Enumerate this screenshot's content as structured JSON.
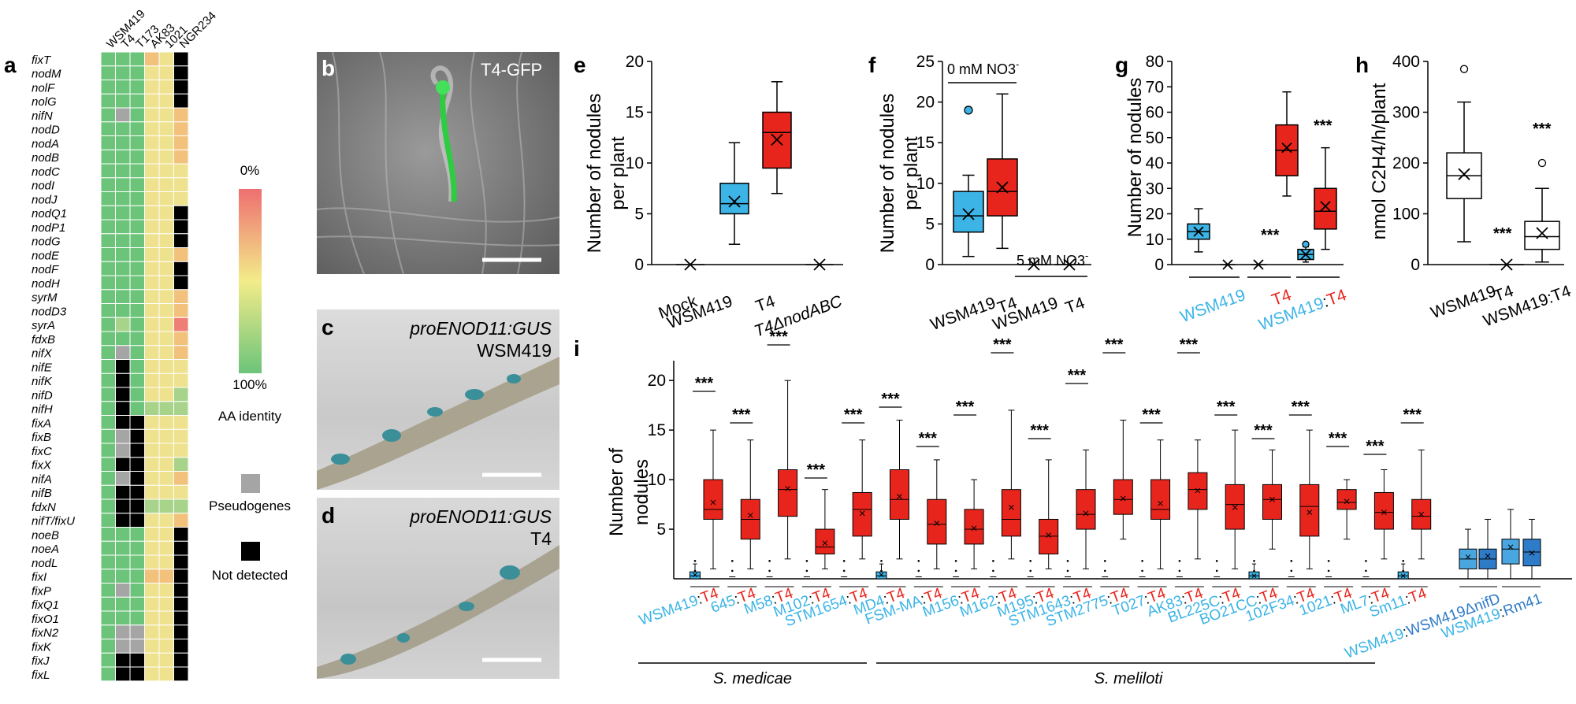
{
  "panels": {
    "a": {
      "label": "a",
      "strains": [
        "WSM419",
        "T4",
        "T173",
        "AK83",
        "1021",
        "NGR234"
      ],
      "genes": [
        "fixT",
        "nodM",
        "nolF",
        "nolG",
        "nifN",
        "nodD",
        "nodA",
        "nodB",
        "nodC",
        "nodI",
        "nodJ",
        "nodQ1",
        "nodP1",
        "nodG",
        "nodE",
        "nodF",
        "nodH",
        "syrM",
        "nodD3",
        "syrA",
        "fdxB",
        "nifX",
        "nifE",
        "nifK",
        "nifD",
        "nifH",
        "fixA",
        "fixB",
        "fixC",
        "fixX",
        "nifA",
        "nifB",
        "fdxN",
        "nifT/fixU",
        "noeB",
        "noeA",
        "nodL",
        "fixI",
        "fixP",
        "fixQ1",
        "fixO1",
        "fixN2",
        "fixK",
        "fixJ",
        "fixL"
      ],
      "legend": {
        "top": "0%",
        "bottom": "100%",
        "aa": "AA identity",
        "pseudo": "Pseudogenes",
        "notdetected": "Not detected"
      },
      "colors": {
        "green": "#6cc47a",
        "lightgreen": "#a7d48a",
        "yellow": "#eee28e",
        "orange": "#f2c27c",
        "red": "#ee7f76",
        "grey": "#a5a5a5",
        "black": "#000000"
      }
    },
    "b": {
      "label": "b",
      "caption": "T4-GFP"
    },
    "c": {
      "label": "c",
      "caption1": "proENOD11:GUS",
      "caption2": "WSM419"
    },
    "d": {
      "label": "d",
      "caption1": "proENOD11:GUS",
      "caption2": "T4"
    },
    "e": {
      "label": "e",
      "ylabel1": "Number of nodules",
      "ylabel2": "per plant",
      "xlabels": [
        "Mock",
        "WSM419",
        "T4",
        "T4ΔnodABC"
      ]
    },
    "f": {
      "label": "f",
      "ylabel1": "Number of nodules",
      "ylabel2": "per plant",
      "xlabels": [
        "WSM419",
        "T4",
        "WSM419",
        "T4"
      ],
      "note0": "0 mM NO3",
      "note5": "5 mM NO3",
      "minus": "-"
    },
    "g": {
      "label": "g",
      "ylabel": "Number of nodules",
      "xlabels": [
        "WSM419",
        "T4",
        "WSM419",
        ":",
        "T4"
      ],
      "stars": "***"
    },
    "h": {
      "label": "h",
      "ylabel": "nmol C2H4/h/plant",
      "xlabels": [
        "WSM419",
        "T4",
        "WSM419:T4"
      ],
      "stars": "***"
    },
    "i": {
      "label": "i",
      "ylabel1": "Number of",
      "ylabel2": "nodules",
      "stars": "***",
      "species1": "S. medicae",
      "species2": "S. meliloti",
      "pairs": [
        {
          "a": "WSM419",
          "sep": ":",
          "b": "T4"
        },
        {
          "a": "645",
          "sep": ":",
          "b": "T4"
        },
        {
          "a": "M58",
          "sep": ":",
          "b": "T4"
        },
        {
          "a": "M102",
          "sep": ":",
          "b": "T4"
        },
        {
          "a": "STM1654",
          "sep": ":",
          "b": "T4"
        },
        {
          "a": "MD4",
          "sep": ":",
          "b": "T4"
        },
        {
          "a": "FSM-MA",
          "sep": ":",
          "b": "T4"
        },
        {
          "a": "M156",
          "sep": ":",
          "b": "T4"
        },
        {
          "a": "M162",
          "sep": ":",
          "b": "T4"
        },
        {
          "a": "M195",
          "sep": ":",
          "b": "T4"
        },
        {
          "a": "STM1643",
          "sep": ":",
          "b": "T4"
        },
        {
          "a": "STM2775",
          "sep": ":",
          "b": "T4"
        },
        {
          "a": "T027",
          "sep": ":",
          "b": "T4"
        },
        {
          "a": "AK83",
          "sep": ":",
          "b": "T4"
        },
        {
          "a": "BL225C",
          "sep": ":",
          "b": "T4"
        },
        {
          "a": "BO21CC",
          "sep": ":",
          "b": "T4"
        },
        {
          "a": "102F34",
          "sep": ":",
          "b": "T4"
        },
        {
          "a": "1021",
          "sep": ":",
          "b": "T4"
        },
        {
          "a": "ML7",
          "sep": ":",
          "b": "T4"
        },
        {
          "a": "Sm11",
          "sep": ":",
          "b": "T4"
        }
      ],
      "ctrl1": {
        "a": "WSM419",
        "sep": ":",
        "b": "WSM419ΔnifD"
      },
      "ctrl2": {
        "a": "WSM419",
        "sep": ":",
        "b": "Rm41"
      }
    }
  },
  "chart_data": [
    {
      "type": "box",
      "id": "e",
      "ylim": [
        0,
        20
      ],
      "yticks": [
        0,
        5,
        10,
        15,
        20
      ],
      "categories": [
        "Mock",
        "WSM419",
        "T4",
        "T4ΔnodABC"
      ],
      "boxes": [
        {
          "min": 0,
          "q1": 0,
          "med": 0,
          "q3": 0,
          "max": 0,
          "mean": 0
        },
        {
          "min": 2,
          "q1": 5,
          "med": 6,
          "q3": 8,
          "max": 12,
          "mean": 6.2
        },
        {
          "min": 7,
          "q1": 9.5,
          "med": 13,
          "q3": 15,
          "max": 18,
          "mean": 12.3
        },
        {
          "min": 0,
          "q1": 0,
          "med": 0,
          "q3": 0,
          "max": 0,
          "mean": 0
        }
      ]
    },
    {
      "type": "box",
      "id": "f",
      "ylim": [
        0,
        25
      ],
      "yticks": [
        0,
        5,
        10,
        15,
        20,
        25
      ],
      "categories": [
        "WSM419",
        "T4",
        "WSM419",
        "T4"
      ],
      "boxes": [
        {
          "min": 1,
          "q1": 4,
          "med": 6,
          "q3": 9,
          "max": 11,
          "mean": 6.2,
          "outliers": [
            19
          ]
        },
        {
          "min": 2,
          "q1": 6,
          "med": 9,
          "q3": 13,
          "max": 21,
          "mean": 9.5
        },
        {
          "min": 0,
          "q1": 0,
          "med": 0,
          "q3": 0,
          "max": 0,
          "mean": 0
        },
        {
          "min": 0,
          "q1": 0,
          "med": 0,
          "q3": 0,
          "max": 0,
          "mean": 0
        }
      ]
    },
    {
      "type": "box",
      "id": "g",
      "ylim": [
        0,
        80
      ],
      "yticks": [
        0,
        10,
        20,
        30,
        40,
        50,
        60,
        70,
        80
      ],
      "boxes": [
        {
          "min": 5,
          "q1": 10,
          "med": 13,
          "q3": 16,
          "max": 22,
          "mean": 13
        },
        {
          "min": 0,
          "q1": 0,
          "med": 0,
          "q3": 0,
          "max": 0,
          "mean": 0
        },
        {
          "min": 0,
          "q1": 0,
          "med": 0,
          "q3": 0,
          "max": 0,
          "mean": 0
        },
        {
          "min": 27,
          "q1": 35,
          "med": 45,
          "q3": 55,
          "max": 68,
          "mean": 46
        },
        {
          "min": 1,
          "q1": 2,
          "med": 4,
          "q3": 6,
          "max": 7,
          "mean": 4,
          "outliers": [
            8
          ]
        },
        {
          "min": 6,
          "q1": 14,
          "med": 21,
          "q3": 30,
          "max": 46,
          "mean": 23
        }
      ]
    },
    {
      "type": "box",
      "id": "h",
      "ylim": [
        0,
        400
      ],
      "yticks": [
        0,
        100,
        200,
        300,
        400
      ],
      "categories": [
        "WSM419",
        "T4",
        "WSM419:T4"
      ],
      "boxes": [
        {
          "min": 45,
          "q1": 130,
          "med": 175,
          "q3": 220,
          "max": 320,
          "mean": 178,
          "outliers": [
            385
          ]
        },
        {
          "min": 0,
          "q1": 0,
          "med": 0,
          "q3": 0,
          "max": 0,
          "mean": 0
        },
        {
          "min": 5,
          "q1": 30,
          "med": 55,
          "q3": 85,
          "max": 150,
          "mean": 62,
          "outliers": [
            200
          ]
        }
      ]
    },
    {
      "type": "box",
      "id": "i",
      "ylim": [
        0,
        22
      ],
      "yticks": [
        5,
        10,
        15,
        20
      ],
      "pairs_blue": [
        0.4,
        0,
        0,
        0,
        0,
        0.4,
        0,
        0,
        0,
        0,
        0,
        0,
        0,
        0,
        0,
        0.3,
        0,
        0,
        0,
        0.3
      ],
      "pairs_red": [
        {
          "min": 1,
          "q1": 6,
          "med": 7,
          "q3": 10,
          "max": 15,
          "mean": 7.7
        },
        {
          "min": 1,
          "q1": 4,
          "med": 6,
          "q3": 8,
          "max": 14,
          "mean": 6.4
        },
        {
          "min": 2,
          "q1": 6.3,
          "med": 9,
          "q3": 11,
          "max": 20,
          "mean": 9.1
        },
        {
          "min": 1,
          "q1": 2.5,
          "med": 3.2,
          "q3": 5,
          "max": 9,
          "mean": 3.6
        },
        {
          "min": 2,
          "q1": 4.3,
          "med": 7,
          "q3": 8.7,
          "max": 14,
          "mean": 6.6
        },
        {
          "min": 2,
          "q1": 6,
          "med": 8,
          "q3": 11,
          "max": 16,
          "mean": 8.3
        },
        {
          "min": 1,
          "q1": 3.5,
          "med": 5.5,
          "q3": 8,
          "max": 12,
          "mean": 5.6
        },
        {
          "min": 1,
          "q1": 3.5,
          "med": 5,
          "q3": 7,
          "max": 10,
          "mean": 5.1
        },
        {
          "min": 2,
          "q1": 4.3,
          "med": 6,
          "q3": 9,
          "max": 17,
          "mean": 7.2
        },
        {
          "min": 1,
          "q1": 2.5,
          "med": 4.3,
          "q3": 6,
          "max": 12,
          "mean": 4.4
        },
        {
          "min": 1,
          "q1": 5,
          "med": 6.5,
          "q3": 9,
          "max": 13,
          "mean": 6.6
        },
        {
          "min": 4,
          "q1": 6.5,
          "med": 8,
          "q3": 10,
          "max": 16,
          "mean": 8.1
        },
        {
          "min": 1,
          "q1": 6,
          "med": 7,
          "q3": 10,
          "max": 14,
          "mean": 7.6
        },
        {
          "min": 2,
          "q1": 7,
          "med": 9,
          "q3": 10.7,
          "max": 14,
          "mean": 8.9
        },
        {
          "min": 1,
          "q1": 5,
          "med": 7.5,
          "q3": 9.5,
          "max": 15,
          "mean": 7.2
        },
        {
          "min": 3,
          "q1": 6,
          "med": 8,
          "q3": 9.5,
          "max": 13,
          "mean": 8
        },
        {
          "min": 1,
          "q1": 4.3,
          "med": 7.3,
          "q3": 9.5,
          "max": 15,
          "mean": 6.7
        },
        {
          "min": 4,
          "q1": 7,
          "med": 7.7,
          "q3": 9,
          "max": 10,
          "mean": 7.8
        },
        {
          "min": 2,
          "q1": 5,
          "med": 6.7,
          "q3": 8.7,
          "max": 11,
          "mean": 6.7
        },
        {
          "min": 2,
          "q1": 5,
          "med": 6.3,
          "q3": 8,
          "max": 13,
          "mean": 6.5
        }
      ],
      "controls": [
        {
          "min": 0,
          "q1": 1,
          "med": 2,
          "q3": 3,
          "max": 5,
          "mean": 2.2
        },
        {
          "min": 0,
          "q1": 1,
          "med": 2,
          "q3": 3,
          "max": 6,
          "mean": 2.3
        },
        {
          "min": 0,
          "q1": 1.5,
          "med": 3,
          "q3": 4,
          "max": 7,
          "mean": 3.2
        },
        {
          "min": 0,
          "q1": 1.3,
          "med": 2.7,
          "q3": 4,
          "max": 6,
          "mean": 2.6
        }
      ]
    }
  ]
}
